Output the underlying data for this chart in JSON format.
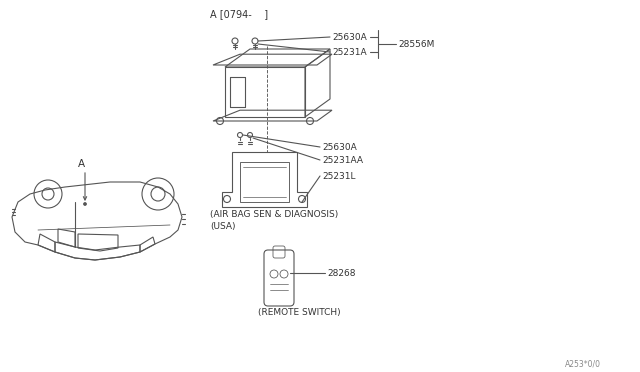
{
  "background_color": "#ffffff",
  "line_color": "#555555",
  "text_color": "#333333",
  "watermark": "A253*0/0",
  "version_label": "A [0794-    ]",
  "label_A": "A",
  "group1_label": "(AIR BAG SEN & DIAGNOSIS)",
  "group2_label": "(USA)",
  "group3_label": "(REMOTE SWITCH)",
  "part_labels": {
    "25630A_top": "25630A",
    "25231A": "25231A",
    "28556M": "28556M",
    "25630A_bot": "25630A",
    "25231AA": "25231AA",
    "25231L": "25231L",
    "28268": "28268"
  },
  "figsize": [
    6.4,
    3.72
  ],
  "dpi": 100
}
